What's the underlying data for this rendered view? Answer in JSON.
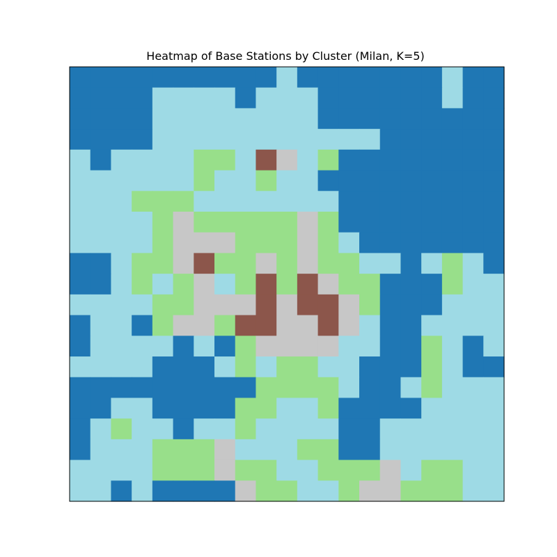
{
  "chart_data": {
    "type": "heatmap",
    "title": "Heatmap of Base Stations by Cluster (Milan, K=5)",
    "xlabel": "",
    "ylabel": "",
    "show_axes_ticks": false,
    "grid": false,
    "legend": "none",
    "n_rows": 21,
    "n_cols": 21,
    "clusters": [
      0,
      1,
      2,
      3,
      4
    ],
    "cluster_colors": {
      "0": "#1f77b4",
      "1": "#98df8a",
      "2": "#8c564b",
      "3": "#c7c7c7",
      "4": "#9edae5"
    },
    "values": [
      [
        0,
        0,
        0,
        0,
        0,
        0,
        0,
        0,
        0,
        0,
        4,
        0,
        0,
        0,
        0,
        0,
        0,
        0,
        4,
        0,
        0
      ],
      [
        0,
        0,
        0,
        0,
        4,
        4,
        4,
        4,
        0,
        4,
        4,
        4,
        0,
        0,
        0,
        0,
        0,
        0,
        4,
        0,
        0
      ],
      [
        0,
        0,
        0,
        0,
        4,
        4,
        4,
        4,
        4,
        4,
        4,
        4,
        0,
        0,
        0,
        0,
        0,
        0,
        0,
        0,
        0
      ],
      [
        0,
        0,
        0,
        0,
        4,
        4,
        4,
        4,
        4,
        4,
        4,
        4,
        4,
        4,
        4,
        0,
        0,
        0,
        0,
        0,
        0
      ],
      [
        4,
        0,
        4,
        4,
        4,
        4,
        1,
        1,
        4,
        2,
        3,
        4,
        1,
        0,
        0,
        0,
        0,
        0,
        0,
        0,
        0
      ],
      [
        4,
        4,
        4,
        4,
        4,
        4,
        1,
        4,
        4,
        1,
        4,
        4,
        0,
        0,
        0,
        0,
        0,
        0,
        0,
        0,
        0
      ],
      [
        4,
        4,
        4,
        1,
        1,
        1,
        4,
        4,
        4,
        4,
        4,
        4,
        4,
        0,
        0,
        0,
        0,
        0,
        0,
        0,
        0
      ],
      [
        4,
        4,
        4,
        4,
        1,
        3,
        1,
        1,
        1,
        1,
        1,
        3,
        1,
        0,
        0,
        0,
        0,
        0,
        0,
        0,
        0
      ],
      [
        4,
        4,
        4,
        4,
        1,
        3,
        3,
        3,
        1,
        1,
        1,
        3,
        1,
        4,
        0,
        0,
        0,
        0,
        0,
        0,
        0
      ],
      [
        0,
        0,
        4,
        1,
        1,
        3,
        2,
        1,
        1,
        3,
        1,
        3,
        1,
        1,
        4,
        4,
        0,
        4,
        1,
        4,
        0
      ],
      [
        0,
        0,
        4,
        1,
        4,
        1,
        3,
        4,
        1,
        2,
        1,
        2,
        3,
        1,
        1,
        0,
        0,
        0,
        1,
        4,
        4
      ],
      [
        4,
        4,
        4,
        4,
        1,
        1,
        3,
        3,
        3,
        2,
        3,
        2,
        2,
        3,
        1,
        0,
        0,
        0,
        4,
        4,
        4
      ],
      [
        0,
        4,
        4,
        0,
        1,
        3,
        3,
        1,
        2,
        2,
        3,
        3,
        2,
        3,
        4,
        0,
        0,
        4,
        4,
        4,
        4
      ],
      [
        0,
        4,
        4,
        4,
        4,
        0,
        4,
        0,
        1,
        3,
        3,
        3,
        3,
        4,
        4,
        0,
        0,
        1,
        4,
        0,
        4
      ],
      [
        4,
        4,
        4,
        4,
        0,
        0,
        0,
        4,
        1,
        4,
        1,
        1,
        4,
        4,
        0,
        0,
        0,
        1,
        4,
        0,
        0
      ],
      [
        0,
        0,
        0,
        0,
        0,
        0,
        0,
        0,
        0,
        1,
        1,
        1,
        1,
        4,
        0,
        0,
        4,
        1,
        4,
        4,
        4
      ],
      [
        0,
        0,
        4,
        4,
        0,
        0,
        0,
        0,
        1,
        1,
        4,
        4,
        1,
        0,
        0,
        0,
        0,
        4,
        4,
        4,
        4
      ],
      [
        0,
        4,
        1,
        4,
        4,
        0,
        4,
        4,
        1,
        4,
        4,
        4,
        4,
        0,
        0,
        4,
        4,
        4,
        4,
        4,
        4
      ],
      [
        0,
        4,
        4,
        4,
        1,
        1,
        1,
        3,
        4,
        4,
        4,
        1,
        1,
        0,
        0,
        4,
        4,
        4,
        4,
        4,
        4
      ],
      [
        4,
        4,
        4,
        4,
        1,
        1,
        1,
        3,
        1,
        1,
        4,
        4,
        1,
        1,
        1,
        3,
        4,
        1,
        1,
        4,
        4
      ],
      [
        4,
        4,
        0,
        4,
        0,
        0,
        0,
        0,
        3,
        1,
        1,
        4,
        4,
        1,
        3,
        3,
        1,
        1,
        1,
        4,
        4
      ]
    ]
  }
}
